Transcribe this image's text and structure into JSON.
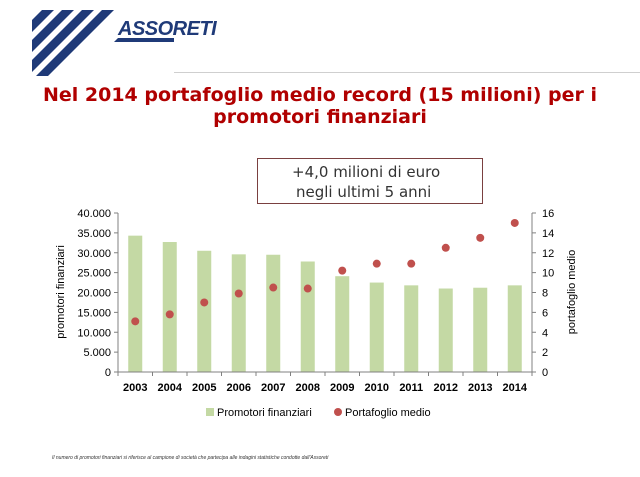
{
  "header": {
    "logo_text": "ASSORETI",
    "title_line1": "Nel 2014 portafoglio medio record (15 milioni) per i",
    "title_line2": "promotori finanziari"
  },
  "annotation": {
    "line1": "+4,0 milioni di euro",
    "line2": "negli ultimi 5 anni"
  },
  "footnote": "Il numero di promotori finanziari si riferisce al campione di società che partecipa alle indagini statistiche condotte dall'Assoreti",
  "colors": {
    "title": "#b00000",
    "bar": "#c4d9a4",
    "dot": "#c0504d",
    "logo": "#1f3a78"
  },
  "chart_data": {
    "type": "bar",
    "categories": [
      "2003",
      "2004",
      "2005",
      "2006",
      "2007",
      "2008",
      "2009",
      "2010",
      "2011",
      "2012",
      "2013",
      "2014"
    ],
    "series": [
      {
        "name": "Promotori finanziari",
        "kind": "bar",
        "axis": "left",
        "values": [
          34300,
          32700,
          30500,
          29600,
          29500,
          27800,
          24100,
          22500,
          21800,
          21000,
          21200,
          21800
        ]
      },
      {
        "name": "Portafoglio medio",
        "kind": "scatter",
        "axis": "right",
        "values": [
          5.1,
          5.8,
          7.0,
          7.9,
          8.5,
          8.4,
          10.2,
          10.9,
          10.9,
          12.5,
          13.5,
          15.0
        ]
      }
    ],
    "ylabel": "promotori finanziari",
    "y2label": "portafoglio medio",
    "ylim": [
      0,
      40000
    ],
    "y2lim": [
      0,
      16
    ],
    "yticks": [
      "0",
      "5.000",
      "10.000",
      "15.000",
      "20.000",
      "25.000",
      "30.000",
      "35.000",
      "40.000"
    ],
    "y2ticks": [
      "0",
      "2",
      "4",
      "6",
      "8",
      "10",
      "12",
      "14",
      "16"
    ],
    "legend": [
      "Promotori finanziari",
      "Portafoglio medio"
    ],
    "legend_position": "bottom",
    "grid": false
  }
}
